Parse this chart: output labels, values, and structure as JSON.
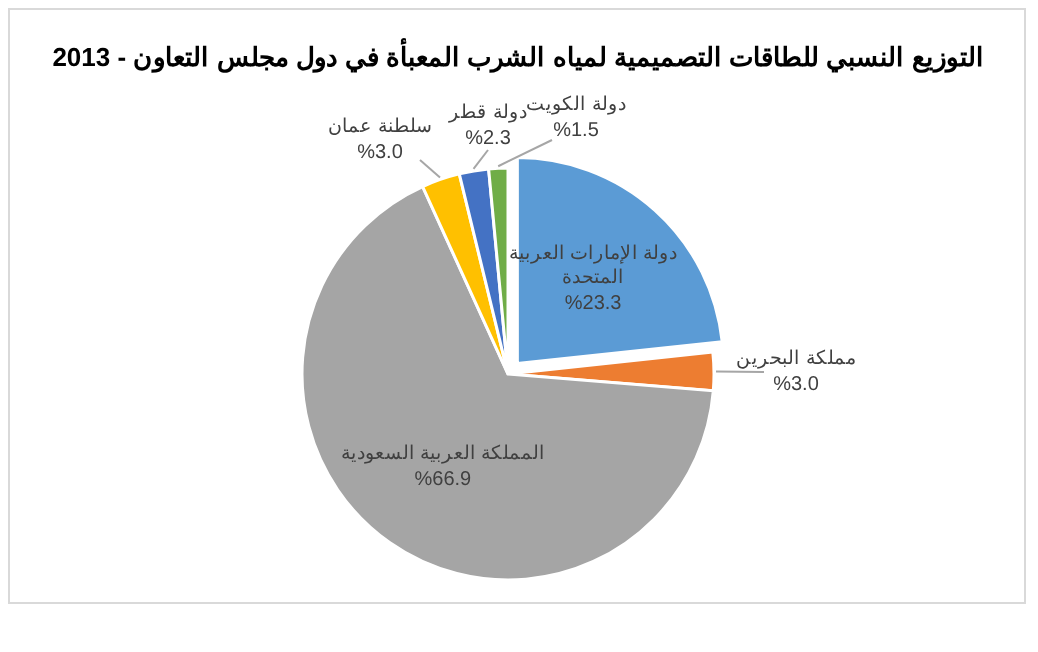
{
  "chart_data": {
    "type": "pie",
    "title": "التوزيع النسبي للطاقات التصميمية لمياه الشرب المعبأة في دول مجلس التعاون - 2013",
    "categories": [
      "دولة الإمارات العربية المتحدة",
      "مملكة البحرين",
      "المملكة العربية السعودية",
      "سلطنة عمان",
      "دولة قطر",
      "دولة الكويت"
    ],
    "values": [
      23.3,
      3.0,
      66.9,
      3.0,
      2.3,
      1.5
    ],
    "value_labels": [
      "%23.3",
      "%3.0",
      "%66.9",
      "%3.0",
      "%2.3",
      "%1.5"
    ],
    "colors": [
      "#5b9bd5",
      "#ed7d31",
      "#a5a5a5",
      "#ffc000",
      "#4472c4",
      "#70ad47"
    ],
    "legend": false
  }
}
